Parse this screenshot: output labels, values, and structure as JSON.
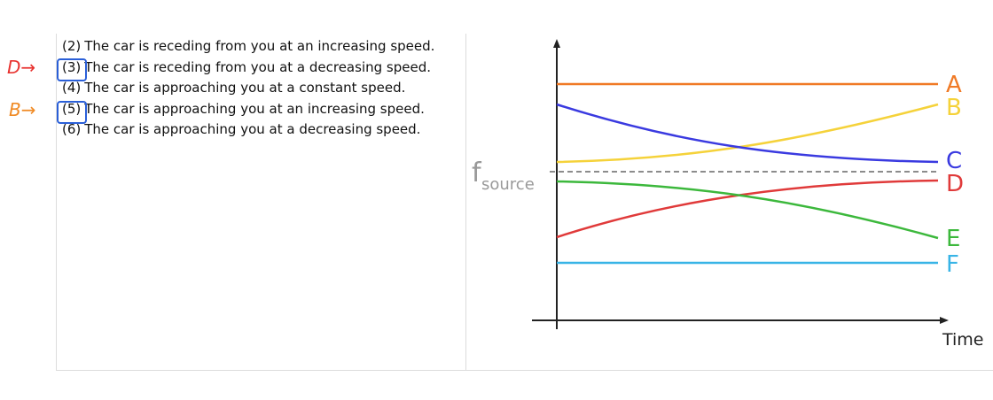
{
  "statements": [
    {
      "num": "(2)",
      "text": "The car is receding from you at an increasing speed."
    },
    {
      "num": "(3)",
      "text": "The car is receding from you at a decreasing speed."
    },
    {
      "num": "(4)",
      "text": "The car is approaching you at a constant speed."
    },
    {
      "num": "(5)",
      "text": "The car is approaching you at an increasing speed."
    },
    {
      "num": "(6)",
      "text": "The car is approaching you at a decreasing speed."
    }
  ],
  "annotations": [
    {
      "text": "D→",
      "color": "#e8322f"
    },
    {
      "text": "B→",
      "color": "#f08a24"
    }
  ],
  "graph": {
    "reference_label": "f",
    "reference_subscript": "source",
    "x_axis_label": "Time",
    "curves": [
      {
        "label": "A",
        "color": "#f07a26"
      },
      {
        "label": "B",
        "color": "#f5d23a"
      },
      {
        "label": "C",
        "color": "#3a3ae0"
      },
      {
        "label": "D",
        "color": "#e03a3a"
      },
      {
        "label": "E",
        "color": "#3cb83c"
      },
      {
        "label": "F",
        "color": "#38b4e6"
      }
    ]
  }
}
